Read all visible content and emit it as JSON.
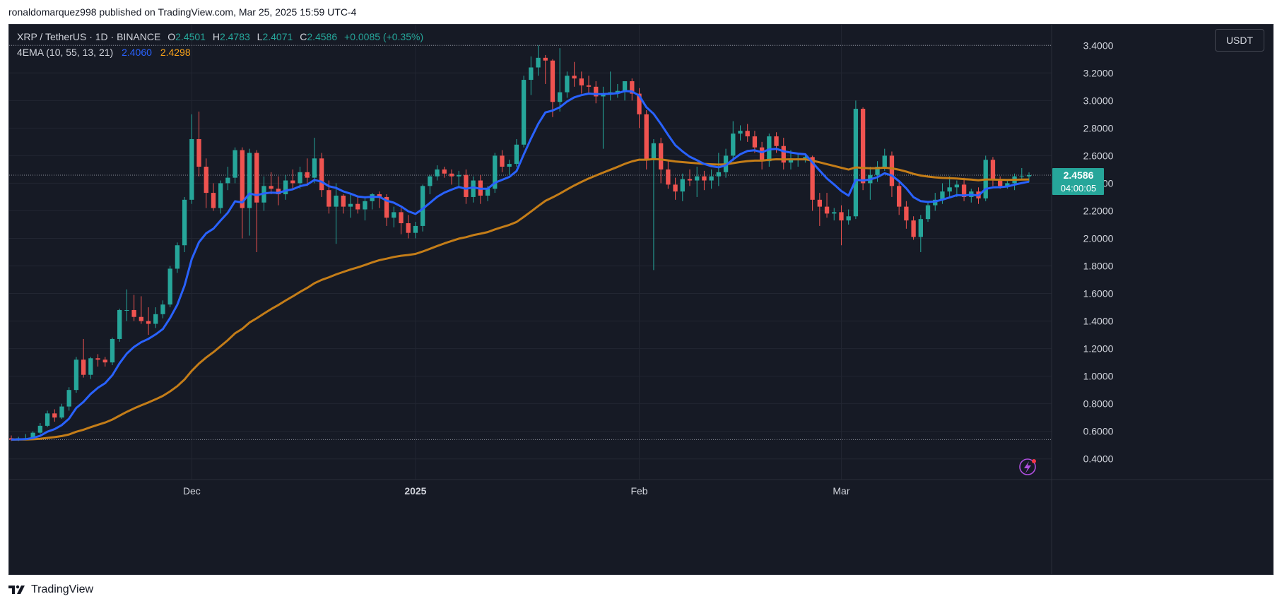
{
  "header": {
    "published_line": "ronaldomarquez998 published on TradingView.com, Mar 25, 2025 15:59 UTC-4"
  },
  "legend": {
    "symbol": "XRP / TetherUS · 1D · BINANCE",
    "open_label": "O",
    "open": "2.4501",
    "high_label": "H",
    "high": "2.4783",
    "low_label": "L",
    "low": "2.4071",
    "close_label": "C",
    "close": "2.4586",
    "change": "+0.0085 (+0.35%)",
    "indicator": "4EMA (10, 55, 13, 21)",
    "ema_fast_value": "2.4060",
    "ema_slow_value": "2.4298"
  },
  "toolbar": {
    "currency": "USDT"
  },
  "price_tag": {
    "price": "2.4586",
    "countdown": "04:00:05"
  },
  "footer": {
    "brand": "TradingView"
  },
  "colors": {
    "background": "#161a25",
    "up": "#26a69a",
    "down": "#ef5350",
    "ema_fast": "#2962ff",
    "ema_slow": "#c47d18",
    "grid": "#222632",
    "axis_text": "#d1d4dc"
  },
  "icons": {
    "lightning": "lightning-icon",
    "logo": "tradingview-logo-icon"
  },
  "chart_data": {
    "type": "candlestick",
    "title": "",
    "ylim": [
      0.25,
      3.55
    ],
    "y_ticks": [
      "3.4000",
      "3.2000",
      "3.0000",
      "2.8000",
      "2.6000",
      "2.4000",
      "2.2000",
      "2.0000",
      "1.8000",
      "1.6000",
      "1.4000",
      "1.2000",
      "1.0000",
      "0.8000",
      "0.6000",
      "0.4000"
    ],
    "x_ticks": [
      {
        "label": "Dec",
        "index": 25,
        "bold": false
      },
      {
        "label": "2025",
        "index": 56,
        "bold": true
      },
      {
        "label": "Feb",
        "index": 87,
        "bold": false
      },
      {
        "label": "Mar",
        "index": 115,
        "bold": false
      }
    ],
    "grid": true,
    "reference_lines": [
      3.4,
      0.54
    ],
    "last_price": 2.4586,
    "candles": [
      {
        "o": 0.55,
        "h": 0.57,
        "l": 0.53,
        "c": 0.54
      },
      {
        "o": 0.54,
        "h": 0.56,
        "l": 0.53,
        "c": 0.55
      },
      {
        "o": 0.55,
        "h": 0.58,
        "l": 0.54,
        "c": 0.55
      },
      {
        "o": 0.55,
        "h": 0.6,
        "l": 0.54,
        "c": 0.59
      },
      {
        "o": 0.59,
        "h": 0.66,
        "l": 0.58,
        "c": 0.64
      },
      {
        "o": 0.64,
        "h": 0.75,
        "l": 0.63,
        "c": 0.73
      },
      {
        "o": 0.73,
        "h": 0.76,
        "l": 0.67,
        "c": 0.7
      },
      {
        "o": 0.7,
        "h": 0.8,
        "l": 0.69,
        "c": 0.78
      },
      {
        "o": 0.78,
        "h": 0.92,
        "l": 0.75,
        "c": 0.9
      },
      {
        "o": 0.9,
        "h": 1.14,
        "l": 0.88,
        "c": 1.12
      },
      {
        "o": 1.12,
        "h": 1.27,
        "l": 0.99,
        "c": 1.01
      },
      {
        "o": 1.01,
        "h": 1.14,
        "l": 0.98,
        "c": 1.13
      },
      {
        "o": 1.13,
        "h": 1.16,
        "l": 1.07,
        "c": 1.12
      },
      {
        "o": 1.12,
        "h": 1.14,
        "l": 1.07,
        "c": 1.1
      },
      {
        "o": 1.1,
        "h": 1.28,
        "l": 1.08,
        "c": 1.27
      },
      {
        "o": 1.27,
        "h": 1.49,
        "l": 1.25,
        "c": 1.48
      },
      {
        "o": 1.48,
        "h": 1.63,
        "l": 1.4,
        "c": 1.48
      },
      {
        "o": 1.48,
        "h": 1.59,
        "l": 1.4,
        "c": 1.43
      },
      {
        "o": 1.43,
        "h": 1.58,
        "l": 1.38,
        "c": 1.4
      },
      {
        "o": 1.4,
        "h": 1.5,
        "l": 1.3,
        "c": 1.38
      },
      {
        "o": 1.38,
        "h": 1.5,
        "l": 1.35,
        "c": 1.45
      },
      {
        "o": 1.45,
        "h": 1.55,
        "l": 1.42,
        "c": 1.52
      },
      {
        "o": 1.52,
        "h": 1.8,
        "l": 1.5,
        "c": 1.78
      },
      {
        "o": 1.78,
        "h": 1.97,
        "l": 1.75,
        "c": 1.95
      },
      {
        "o": 1.95,
        "h": 2.3,
        "l": 1.9,
        "c": 2.28
      },
      {
        "o": 2.28,
        "h": 2.9,
        "l": 2.25,
        "c": 2.72
      },
      {
        "o": 2.72,
        "h": 2.92,
        "l": 2.45,
        "c": 2.52
      },
      {
        "o": 2.52,
        "h": 2.58,
        "l": 2.22,
        "c": 2.33
      },
      {
        "o": 2.33,
        "h": 2.4,
        "l": 2.2,
        "c": 2.22
      },
      {
        "o": 2.22,
        "h": 2.42,
        "l": 2.18,
        "c": 2.4
      },
      {
        "o": 2.4,
        "h": 2.52,
        "l": 2.35,
        "c": 2.44
      },
      {
        "o": 2.44,
        "h": 2.66,
        "l": 2.4,
        "c": 2.64
      },
      {
        "o": 2.64,
        "h": 2.66,
        "l": 2.0,
        "c": 2.22
      },
      {
        "o": 2.22,
        "h": 2.65,
        "l": 2.02,
        "c": 2.62
      },
      {
        "o": 2.62,
        "h": 2.64,
        "l": 1.9,
        "c": 2.26
      },
      {
        "o": 2.26,
        "h": 2.45,
        "l": 2.2,
        "c": 2.38
      },
      {
        "o": 2.38,
        "h": 2.48,
        "l": 2.32,
        "c": 2.36
      },
      {
        "o": 2.36,
        "h": 2.45,
        "l": 2.24,
        "c": 2.32
      },
      {
        "o": 2.32,
        "h": 2.46,
        "l": 2.28,
        "c": 2.42
      },
      {
        "o": 2.42,
        "h": 2.5,
        "l": 2.35,
        "c": 2.4
      },
      {
        "o": 2.4,
        "h": 2.52,
        "l": 2.36,
        "c": 2.48
      },
      {
        "o": 2.48,
        "h": 2.58,
        "l": 2.38,
        "c": 2.44
      },
      {
        "o": 2.44,
        "h": 2.73,
        "l": 2.4,
        "c": 2.58
      },
      {
        "o": 2.58,
        "h": 2.62,
        "l": 2.3,
        "c": 2.35
      },
      {
        "o": 2.35,
        "h": 2.42,
        "l": 2.18,
        "c": 2.23
      },
      {
        "o": 2.23,
        "h": 2.4,
        "l": 1.96,
        "c": 2.31
      },
      {
        "o": 2.31,
        "h": 2.32,
        "l": 2.18,
        "c": 2.23
      },
      {
        "o": 2.23,
        "h": 2.33,
        "l": 2.15,
        "c": 2.25
      },
      {
        "o": 2.25,
        "h": 2.3,
        "l": 2.18,
        "c": 2.21
      },
      {
        "o": 2.21,
        "h": 2.29,
        "l": 2.13,
        "c": 2.27
      },
      {
        "o": 2.27,
        "h": 2.33,
        "l": 2.21,
        "c": 2.32
      },
      {
        "o": 2.32,
        "h": 2.34,
        "l": 2.22,
        "c": 2.3
      },
      {
        "o": 2.3,
        "h": 2.32,
        "l": 2.09,
        "c": 2.15
      },
      {
        "o": 2.15,
        "h": 2.23,
        "l": 2.08,
        "c": 2.19
      },
      {
        "o": 2.19,
        "h": 2.22,
        "l": 2.03,
        "c": 2.11
      },
      {
        "o": 2.11,
        "h": 2.17,
        "l": 2.0,
        "c": 2.04
      },
      {
        "o": 2.04,
        "h": 2.12,
        "l": 2.0,
        "c": 2.09
      },
      {
        "o": 2.09,
        "h": 2.39,
        "l": 2.05,
        "c": 2.38
      },
      {
        "o": 2.38,
        "h": 2.46,
        "l": 2.32,
        "c": 2.45
      },
      {
        "o": 2.45,
        "h": 2.53,
        "l": 2.42,
        "c": 2.5
      },
      {
        "o": 2.5,
        "h": 2.52,
        "l": 2.44,
        "c": 2.47
      },
      {
        "o": 2.47,
        "h": 2.5,
        "l": 2.39,
        "c": 2.45
      },
      {
        "o": 2.45,
        "h": 2.49,
        "l": 2.38,
        "c": 2.46
      },
      {
        "o": 2.46,
        "h": 2.5,
        "l": 2.25,
        "c": 2.3
      },
      {
        "o": 2.3,
        "h": 2.45,
        "l": 2.26,
        "c": 2.42
      },
      {
        "o": 2.42,
        "h": 2.46,
        "l": 2.25,
        "c": 2.31
      },
      {
        "o": 2.31,
        "h": 2.38,
        "l": 2.27,
        "c": 2.36
      },
      {
        "o": 2.36,
        "h": 2.62,
        "l": 2.33,
        "c": 2.6
      },
      {
        "o": 2.6,
        "h": 2.64,
        "l": 2.48,
        "c": 2.52
      },
      {
        "o": 2.52,
        "h": 2.57,
        "l": 2.46,
        "c": 2.54
      },
      {
        "o": 2.54,
        "h": 2.72,
        "l": 2.52,
        "c": 2.68
      },
      {
        "o": 2.68,
        "h": 3.18,
        "l": 2.66,
        "c": 3.15
      },
      {
        "o": 3.15,
        "h": 3.32,
        "l": 3.04,
        "c": 3.24
      },
      {
        "o": 3.24,
        "h": 3.4,
        "l": 3.18,
        "c": 3.31
      },
      {
        "o": 3.31,
        "h": 3.33,
        "l": 3.12,
        "c": 3.29
      },
      {
        "o": 3.29,
        "h": 3.3,
        "l": 2.88,
        "c": 2.99
      },
      {
        "o": 2.99,
        "h": 3.38,
        "l": 2.92,
        "c": 3.06
      },
      {
        "o": 3.06,
        "h": 3.21,
        "l": 3.02,
        "c": 3.18
      },
      {
        "o": 3.18,
        "h": 3.28,
        "l": 3.1,
        "c": 3.16
      },
      {
        "o": 3.16,
        "h": 3.21,
        "l": 3.05,
        "c": 3.11
      },
      {
        "o": 3.11,
        "h": 3.18,
        "l": 3.05,
        "c": 3.1
      },
      {
        "o": 3.1,
        "h": 3.14,
        "l": 2.98,
        "c": 3.03
      },
      {
        "o": 3.03,
        "h": 3.1,
        "l": 2.65,
        "c": 3.05
      },
      {
        "o": 3.05,
        "h": 3.21,
        "l": 3.0,
        "c": 3.06
      },
      {
        "o": 3.06,
        "h": 3.12,
        "l": 3.02,
        "c": 3.07
      },
      {
        "o": 3.07,
        "h": 3.14,
        "l": 3.0,
        "c": 3.14
      },
      {
        "o": 3.14,
        "h": 3.16,
        "l": 3.0,
        "c": 3.05
      },
      {
        "o": 3.05,
        "h": 3.09,
        "l": 2.8,
        "c": 2.9
      },
      {
        "o": 2.9,
        "h": 2.93,
        "l": 2.5,
        "c": 2.57
      },
      {
        "o": 2.57,
        "h": 2.72,
        "l": 1.77,
        "c": 2.69
      },
      {
        "o": 2.69,
        "h": 2.73,
        "l": 2.4,
        "c": 2.5
      },
      {
        "o": 2.5,
        "h": 2.56,
        "l": 2.36,
        "c": 2.39
      },
      {
        "o": 2.39,
        "h": 2.44,
        "l": 2.28,
        "c": 2.34
      },
      {
        "o": 2.34,
        "h": 2.47,
        "l": 2.27,
        "c": 2.43
      },
      {
        "o": 2.43,
        "h": 2.5,
        "l": 2.38,
        "c": 2.42
      },
      {
        "o": 2.42,
        "h": 2.52,
        "l": 2.3,
        "c": 2.45
      },
      {
        "o": 2.45,
        "h": 2.49,
        "l": 2.35,
        "c": 2.42
      },
      {
        "o": 2.42,
        "h": 2.5,
        "l": 2.36,
        "c": 2.45
      },
      {
        "o": 2.45,
        "h": 2.62,
        "l": 2.38,
        "c": 2.48
      },
      {
        "o": 2.48,
        "h": 2.65,
        "l": 2.44,
        "c": 2.6
      },
      {
        "o": 2.6,
        "h": 2.85,
        "l": 2.56,
        "c": 2.76
      },
      {
        "o": 2.76,
        "h": 2.82,
        "l": 2.71,
        "c": 2.78
      },
      {
        "o": 2.78,
        "h": 2.83,
        "l": 2.7,
        "c": 2.74
      },
      {
        "o": 2.74,
        "h": 2.78,
        "l": 2.62,
        "c": 2.66
      },
      {
        "o": 2.66,
        "h": 2.7,
        "l": 2.5,
        "c": 2.56
      },
      {
        "o": 2.56,
        "h": 2.76,
        "l": 2.52,
        "c": 2.74
      },
      {
        "o": 2.74,
        "h": 2.77,
        "l": 2.62,
        "c": 2.67
      },
      {
        "o": 2.67,
        "h": 2.73,
        "l": 2.5,
        "c": 2.55
      },
      {
        "o": 2.55,
        "h": 2.64,
        "l": 2.5,
        "c": 2.58
      },
      {
        "o": 2.58,
        "h": 2.62,
        "l": 2.52,
        "c": 2.58
      },
      {
        "o": 2.58,
        "h": 2.6,
        "l": 2.55,
        "c": 2.59
      },
      {
        "o": 2.59,
        "h": 2.6,
        "l": 2.2,
        "c": 2.28
      },
      {
        "o": 2.28,
        "h": 2.33,
        "l": 2.09,
        "c": 2.23
      },
      {
        "o": 2.23,
        "h": 2.33,
        "l": 2.15,
        "c": 2.18
      },
      {
        "o": 2.18,
        "h": 2.22,
        "l": 2.13,
        "c": 2.19
      },
      {
        "o": 2.19,
        "h": 2.24,
        "l": 1.95,
        "c": 2.13
      },
      {
        "o": 2.13,
        "h": 2.21,
        "l": 2.1,
        "c": 2.16
      },
      {
        "o": 2.16,
        "h": 3.0,
        "l": 2.14,
        "c": 2.94
      },
      {
        "o": 2.94,
        "h": 2.95,
        "l": 2.35,
        "c": 2.4
      },
      {
        "o": 2.4,
        "h": 2.52,
        "l": 2.28,
        "c": 2.46
      },
      {
        "o": 2.46,
        "h": 2.56,
        "l": 2.41,
        "c": 2.52
      },
      {
        "o": 2.52,
        "h": 2.65,
        "l": 2.49,
        "c": 2.6
      },
      {
        "o": 2.6,
        "h": 2.63,
        "l": 2.3,
        "c": 2.38
      },
      {
        "o": 2.38,
        "h": 2.42,
        "l": 2.17,
        "c": 2.23
      },
      {
        "o": 2.23,
        "h": 2.27,
        "l": 2.07,
        "c": 2.13
      },
      {
        "o": 2.13,
        "h": 2.16,
        "l": 1.99,
        "c": 2.01
      },
      {
        "o": 2.01,
        "h": 2.17,
        "l": 1.9,
        "c": 2.14
      },
      {
        "o": 2.14,
        "h": 2.26,
        "l": 2.12,
        "c": 2.24
      },
      {
        "o": 2.24,
        "h": 2.33,
        "l": 2.2,
        "c": 2.28
      },
      {
        "o": 2.28,
        "h": 2.4,
        "l": 2.25,
        "c": 2.34
      },
      {
        "o": 2.34,
        "h": 2.45,
        "l": 2.3,
        "c": 2.37
      },
      {
        "o": 2.37,
        "h": 2.42,
        "l": 2.3,
        "c": 2.39
      },
      {
        "o": 2.39,
        "h": 2.44,
        "l": 2.27,
        "c": 2.3
      },
      {
        "o": 2.3,
        "h": 2.36,
        "l": 2.26,
        "c": 2.34
      },
      {
        "o": 2.34,
        "h": 2.37,
        "l": 2.25,
        "c": 2.29
      },
      {
        "o": 2.29,
        "h": 2.6,
        "l": 2.27,
        "c": 2.57
      },
      {
        "o": 2.57,
        "h": 2.59,
        "l": 2.38,
        "c": 2.42
      },
      {
        "o": 2.42,
        "h": 2.45,
        "l": 2.36,
        "c": 2.38
      },
      {
        "o": 2.38,
        "h": 2.43,
        "l": 2.36,
        "c": 2.4
      },
      {
        "o": 2.4,
        "h": 2.47,
        "l": 2.35,
        "c": 2.45
      },
      {
        "o": 2.45,
        "h": 2.51,
        "l": 2.42,
        "c": 2.45
      },
      {
        "o": 2.4501,
        "h": 2.4783,
        "l": 2.4071,
        "c": 2.4586
      }
    ],
    "series": [
      {
        "name": "EMA 10",
        "color": "#2962ff",
        "values": []
      },
      {
        "name": "EMA 55",
        "color": "#c47d18",
        "values": []
      }
    ]
  }
}
